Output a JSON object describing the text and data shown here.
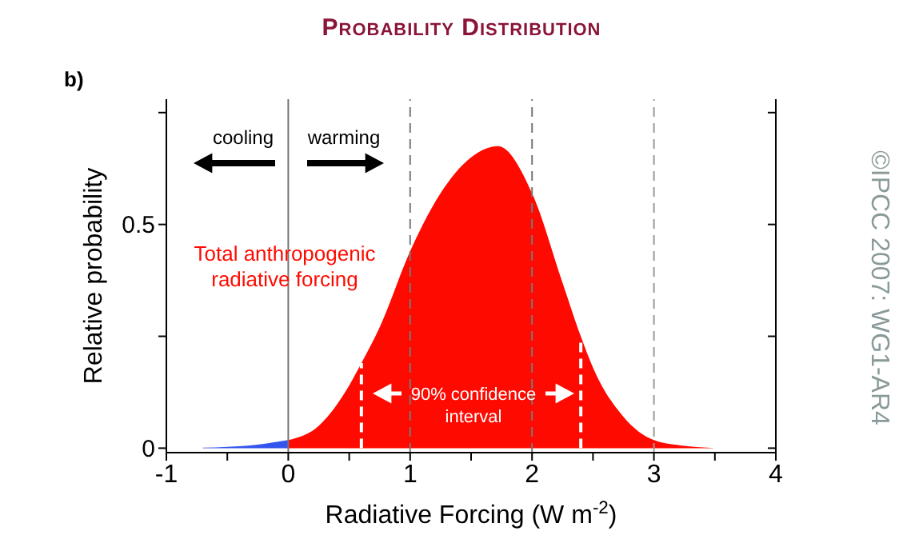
{
  "chart_data": {
    "type": "area",
    "title": "Probability Distribution",
    "xlabel": "Radiative Forcing  (W m$^{-2}$)",
    "ylabel": "Relative probability",
    "xlim": [
      -1,
      4
    ],
    "xticks": [
      -1,
      {
        "value": -0.5,
        "label": null
      },
      0,
      {
        "value": 0.5,
        "label": null
      },
      1,
      {
        "value": 1.5,
        "label": null
      },
      2,
      {
        "value": 2.5,
        "label": null
      },
      3,
      {
        "value": 3.5,
        "label": null
      },
      4
    ],
    "ylim": [
      -0.01,
      0.78
    ],
    "yticks": [
      0,
      {
        "value": 0.25,
        "label": null
      },
      0.5,
      {
        "value": 0.75,
        "label": null
      }
    ],
    "series": [
      {
        "color": "#3355ee",
        "x": [
          -0.7,
          -0.5,
          -0.25,
          0
        ],
        "values": [
          0.001,
          0.003,
          0.008,
          0.018
        ]
      },
      {
        "color": "#ff0a00",
        "x": [
          0,
          0.25,
          0.5,
          0.6,
          0.75,
          1,
          1.25,
          1.5,
          1.72,
          2,
          2.25,
          2.4,
          2.5,
          2.75,
          3,
          3.25,
          3.5
        ],
        "values": [
          0.018,
          0.05,
          0.14,
          0.19,
          0.27,
          0.44,
          0.57,
          0.65,
          0.675,
          0.57,
          0.37,
          0.25,
          0.18,
          0.07,
          0.018,
          0.005,
          0
        ]
      }
    ],
    "ref_lines": [
      {
        "axis": "x",
        "value": 0,
        "color": "#777777",
        "line_style": "solid"
      },
      {
        "axis": "x",
        "value": 1,
        "color": "#777777",
        "line_style": "dashed"
      },
      {
        "axis": "x",
        "value": 2,
        "color": "#777777",
        "line_style": "dashed"
      },
      {
        "axis": "x",
        "value": 3,
        "color": "#999999",
        "line_style": "dashed"
      },
      {
        "axis": "x",
        "value": 0.6,
        "color": "#ffffff",
        "line_style": "dashed"
      },
      {
        "axis": "x",
        "value": 2.4,
        "color": "#ffffff",
        "line_style": "dashed"
      }
    ],
    "annotations": [
      "b)",
      "cooling",
      "warming",
      "Total anthropogenic radiative forcing",
      "90% confidence interval",
      "©IPCC  2007: WG1-AR4"
    ],
    "grid": false
  }
}
